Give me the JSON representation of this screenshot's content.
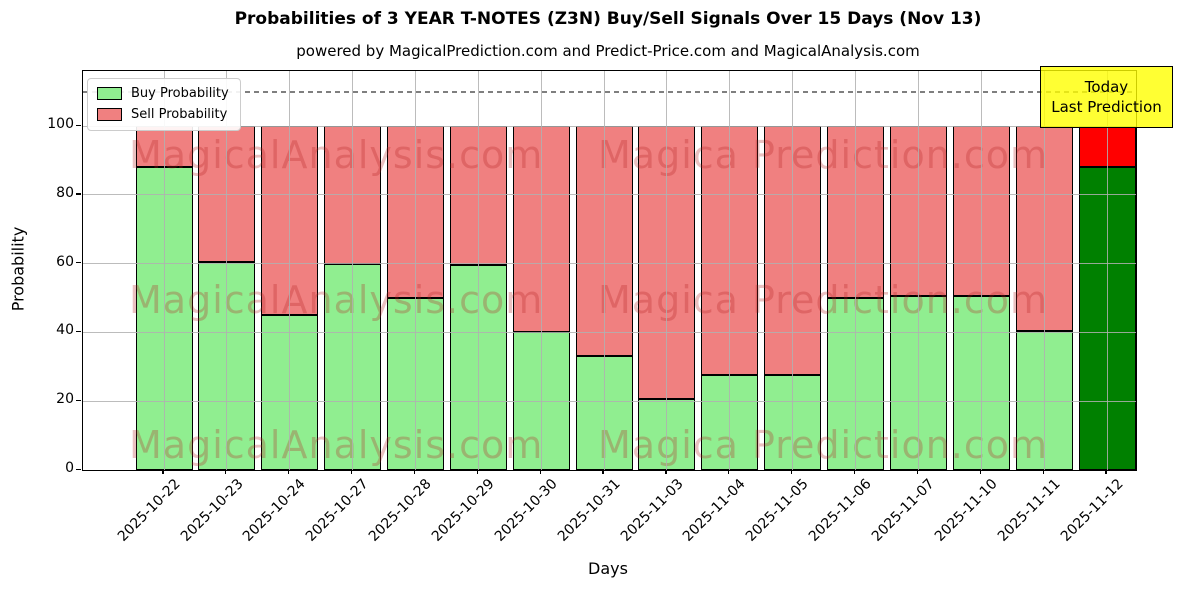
{
  "title": "Probabilities of 3 YEAR T-NOTES (Z3N) Buy/Sell Signals Over 15 Days (Nov 13)",
  "subtitle": "powered by MagicalPrediction.com and Predict-Price.com and MagicalAnalysis.com",
  "watermark_left": "MagicalAnalysis.com",
  "watermark_right": "Magica Prediction.com",
  "legend": {
    "buy_label": "Buy Probability",
    "sell_label": "Sell Probability"
  },
  "annotation": {
    "line1": "Today",
    "line2": "Last Prediction",
    "bg_color": "#FFFF00"
  },
  "colors": {
    "buy": "#90EE90",
    "sell": "#F08080",
    "buy_today": "#008000",
    "sell_today": "#FF0000",
    "grid": "#B0B0B0",
    "dashed_line": "#7F7F7F",
    "watermark": "#CD5C5C"
  },
  "chart_data": {
    "type": "bar",
    "stacked": true,
    "title": "Probabilities of 3 YEAR T-NOTES (Z3N) Buy/Sell Signals Over 15 Days (Nov 13)",
    "xlabel": "Days",
    "ylabel": "Probability",
    "categories": [
      "2025-10-22",
      "2025-10-23",
      "2025-10-24",
      "2025-10-27",
      "2025-10-28",
      "2025-10-29",
      "2025-10-30",
      "2025-10-31",
      "2025-11-03",
      "2025-11-04",
      "2025-11-05",
      "2025-11-06",
      "2025-11-07",
      "2025-11-10",
      "2025-11-11",
      "2025-11-12"
    ],
    "series": [
      {
        "name": "Buy Probability",
        "color": "#90EE90",
        "values": [
          88,
          60.5,
          45,
          60,
          50,
          59.5,
          40,
          33,
          20.5,
          27.5,
          27.5,
          50,
          50.5,
          50.5,
          40.5,
          88
        ]
      },
      {
        "name": "Sell Probability",
        "color": "#F08080",
        "values": [
          12,
          39.5,
          55,
          40,
          50,
          40.5,
          60,
          67,
          79.5,
          72.5,
          72.5,
          50,
          49.5,
          49.5,
          59.5,
          12
        ]
      }
    ],
    "today_index": 15,
    "yticks": [
      0,
      20,
      40,
      60,
      80,
      100
    ],
    "ylim": [
      0,
      116
    ],
    "dashed_line_y": 110,
    "grid": true,
    "legend_position": "upper left"
  }
}
